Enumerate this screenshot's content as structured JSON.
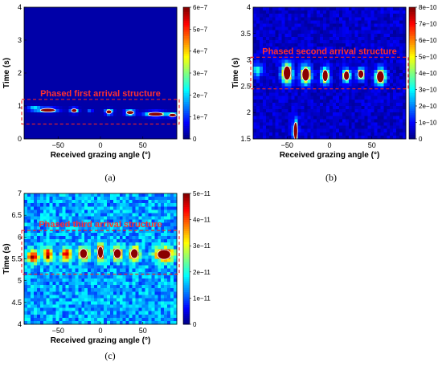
{
  "colors": {
    "background": "#ffffff",
    "annotation": "#ff3030",
    "dashed_box": "#ee2222"
  },
  "colormap": "jet",
  "chart_data": [
    {
      "id": "a",
      "type": "heatmap",
      "panel_label": "(a)",
      "xlabel": "Received grazing angle (°)",
      "ylabel": "Time (s)",
      "xlim": [
        -90,
        90
      ],
      "ylim": [
        0,
        4
      ],
      "xticks": [
        -50,
        0,
        50
      ],
      "yticks": [
        0,
        1,
        2,
        3,
        4
      ],
      "colorbar": {
        "min": 0,
        "max": 6e-07,
        "ticks": [
          "0",
          "1e−7",
          "2e−7",
          "3e−7",
          "4e−7",
          "5e−7",
          "6e−7"
        ]
      },
      "annotation": {
        "text": "Phased first arrival structure",
        "box_time_range": [
          0.45,
          1.2
        ]
      },
      "background_level": 0.04,
      "noise_level": 0.0,
      "blobs": [
        {
          "x": -78,
          "y": 0.92,
          "sx": 5,
          "sy": 0.05,
          "a": 0.35
        },
        {
          "x": -62,
          "y": 0.87,
          "sx": 8,
          "sy": 0.05,
          "a": 0.45
        },
        {
          "x": -31,
          "y": 0.86,
          "sx": 3,
          "sy": 0.05,
          "a": 0.55
        },
        {
          "x": -12,
          "y": 0.83,
          "sx": 2,
          "sy": 0.03,
          "a": 0.25
        },
        {
          "x": 10,
          "y": 0.82,
          "sx": 3,
          "sy": 0.05,
          "a": 0.55
        },
        {
          "x": 35,
          "y": 0.8,
          "sx": 4,
          "sy": 0.05,
          "a": 0.5
        },
        {
          "x": 65,
          "y": 0.75,
          "sx": 8,
          "sy": 0.05,
          "a": 0.7
        },
        {
          "x": 85,
          "y": 0.72,
          "sx": 4,
          "sy": 0.04,
          "a": 0.45
        }
      ],
      "contour_level": 0.45
    },
    {
      "id": "b",
      "type": "heatmap",
      "panel_label": "(b)",
      "xlabel": "Received grazing angle (°)",
      "ylabel": "Time (s)",
      "xlim": [
        -90,
        90
      ],
      "ylim": [
        1.5,
        4
      ],
      "xticks": [
        -50,
        0,
        50
      ],
      "yticks": [
        1.5,
        2,
        2.5,
        3,
        3.5,
        4
      ],
      "colorbar": {
        "min": 0,
        "max": 8e-10,
        "ticks": [
          "0",
          "1e−10",
          "2e−10",
          "3e−10",
          "4e−10",
          "5e−10",
          "6e−10",
          "7e−10",
          "8e−10"
        ]
      },
      "annotation": {
        "text": "Phased second arrival structure",
        "box_time_range": [
          2.45,
          3.05
        ]
      },
      "background_level": 0.06,
      "noise_level": 0.1,
      "blobs": [
        {
          "x": -85,
          "y": 2.8,
          "sx": 4,
          "sy": 0.08,
          "a": 0.35
        },
        {
          "x": -50,
          "y": 2.75,
          "sx": 4,
          "sy": 0.12,
          "a": 1.0
        },
        {
          "x": -28,
          "y": 2.72,
          "sx": 4,
          "sy": 0.11,
          "a": 0.95
        },
        {
          "x": -5,
          "y": 2.7,
          "sx": 3,
          "sy": 0.1,
          "a": 0.85
        },
        {
          "x": 20,
          "y": 2.7,
          "sx": 3,
          "sy": 0.08,
          "a": 0.85
        },
        {
          "x": 37,
          "y": 2.73,
          "sx": 3,
          "sy": 0.07,
          "a": 0.8
        },
        {
          "x": 60,
          "y": 2.68,
          "sx": 4,
          "sy": 0.1,
          "a": 0.9
        },
        {
          "x": -40,
          "y": 1.65,
          "sx": 2,
          "sy": 0.15,
          "a": 0.55
        }
      ],
      "contour_level": 0.55
    },
    {
      "id": "c",
      "type": "heatmap",
      "panel_label": "(c)",
      "xlabel": "Received grazing angle (°)",
      "ylabel": "Time (s)",
      "xlim": [
        -90,
        90
      ],
      "ylim": [
        4,
        7
      ],
      "xticks": [
        -50,
        0,
        50
      ],
      "yticks": [
        4,
        4.5,
        5,
        5.5,
        6,
        6.5,
        7
      ],
      "colorbar": {
        "min": 0,
        "max": 5e-11,
        "ticks": [
          "0",
          "1e−11",
          "2e−11",
          "3e−11",
          "4e−11",
          "5e−11"
        ]
      },
      "annotation": {
        "text": "Phased third arrival structure",
        "box_time_range": [
          5.15,
          6.15
        ]
      },
      "background_level": 0.25,
      "noise_level": 0.22,
      "blobs": [
        {
          "x": -80,
          "y": 5.55,
          "sx": 4,
          "sy": 0.1,
          "a": 0.75
        },
        {
          "x": -62,
          "y": 5.6,
          "sx": 4,
          "sy": 0.1,
          "a": 0.75
        },
        {
          "x": -40,
          "y": 5.6,
          "sx": 4,
          "sy": 0.1,
          "a": 0.75
        },
        {
          "x": -20,
          "y": 5.62,
          "sx": 4,
          "sy": 0.1,
          "a": 0.8
        },
        {
          "x": 0,
          "y": 5.65,
          "sx": 3,
          "sy": 0.12,
          "a": 0.8
        },
        {
          "x": 20,
          "y": 5.62,
          "sx": 4,
          "sy": 0.1,
          "a": 0.85
        },
        {
          "x": 40,
          "y": 5.62,
          "sx": 4,
          "sy": 0.1,
          "a": 0.8
        },
        {
          "x": 75,
          "y": 5.6,
          "sx": 7,
          "sy": 0.1,
          "a": 0.95
        }
      ],
      "contour_level": 0.8
    }
  ]
}
